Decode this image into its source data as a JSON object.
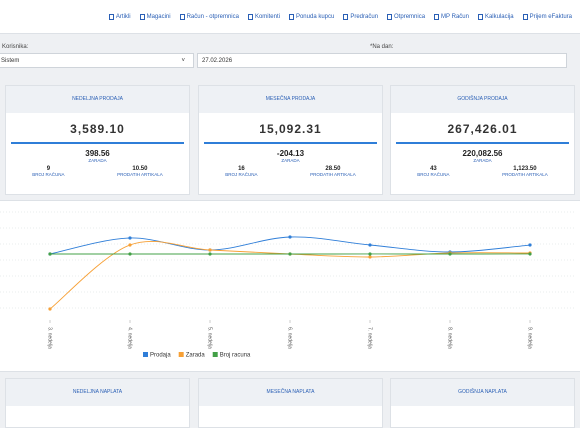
{
  "nav": [
    "Artikli",
    "Magacini",
    "Račun - otpremnica",
    "Komitenti",
    "Ponuda kupcu",
    "Predračun",
    "Otpremnica",
    "MP Račun",
    "Kalkulacija",
    "Prijem eFaktura"
  ],
  "filters": {
    "user_label": "Korisnika:",
    "user_value": "Sistem",
    "date_label": "*Na dan:",
    "date_value": "27.02.2026"
  },
  "sales_cards": [
    {
      "title": "NEDELJNA PRODAJA",
      "total": "3,589.10",
      "profit": "398.56",
      "profit_label": "ZARADA",
      "invoices": "9",
      "invoices_label": "BROJ RAČUNA",
      "items": "10.50",
      "items_label": "PRODATIH ARTIKALA"
    },
    {
      "title": "MESEČNA PRODAJA",
      "total": "15,092.31",
      "profit": "-204.13",
      "profit_label": "ZARADA",
      "invoices": "16",
      "invoices_label": "BROJ RAČUNA",
      "items": "28.50",
      "items_label": "PRODATIH ARTIKALA"
    },
    {
      "title": "GODIŠNJA PRODAJA",
      "total": "267,426.01",
      "profit": "220,082.56",
      "profit_label": "ZARADA",
      "invoices": "43",
      "invoices_label": "BROJ RAČUNA",
      "items": "1,123.50",
      "items_label": "PRODATIH ARTIKALA"
    }
  ],
  "chart_data": {
    "type": "line",
    "categories": [
      "3. nedelja",
      "4. nedelja",
      "5. nedelja",
      "6. nedelja",
      "7. nedelja",
      "8. nedelja",
      "9. nedelja"
    ],
    "ylim": [
      -26400,
      19600
    ],
    "series": [
      {
        "name": "Prodaja",
        "color": "#2f7ed8",
        "values": [
          0,
          6400,
          1600,
          6800,
          3600,
          800,
          3589.1
        ]
      },
      {
        "name": "Zarada",
        "color": "#f7a035",
        "values": [
          -22000,
          3600,
          1600,
          0,
          -1200,
          400,
          398.56
        ]
      },
      {
        "name": "Broj racuna",
        "color": "#43a047",
        "values": [
          3,
          5,
          4,
          2,
          6,
          3,
          9
        ]
      }
    ]
  },
  "payment_cards": [
    {
      "title": "NEDELJNA NAPLATA"
    },
    {
      "title": "MESEČNA NAPLATA"
    },
    {
      "title": "GODIŠNJA NAPLATA"
    }
  ]
}
